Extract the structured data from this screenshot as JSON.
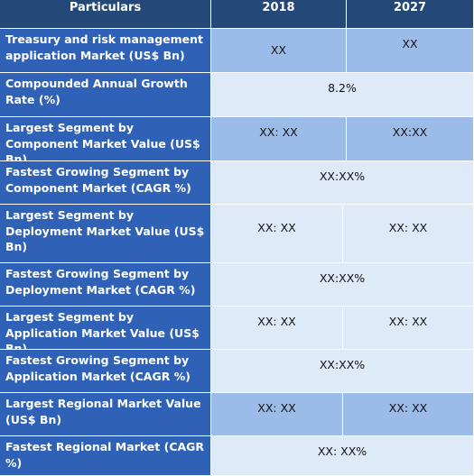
{
  "header": {
    "particulars": "Particulars",
    "col_2018": "2018",
    "col_2027": "2027"
  },
  "rows": [
    {
      "label": "Treasury and risk management application Market (US$ Bn)",
      "v2018": "XX",
      "v2027": "XX"
    },
    {
      "label": "Compounded Annual Growth Rate (%)",
      "merged": "8.2%"
    },
    {
      "label": "Largest Segment by Component Market Value (US$ Bn)",
      "v2018": "XX: XX",
      "v2027": "XX:XX"
    },
    {
      "label": "Fastest Growing Segment by Component Market (CAGR %)",
      "merged": "XX:XX%"
    },
    {
      "label": "Largest Segment by Deployment Market Value (US$ Bn)",
      "v2018": "XX: XX",
      "v2027": "XX: XX"
    },
    {
      "label": "Fastest Growing Segment by Deployment Market (CAGR %)",
      "merged": "XX:XX%"
    },
    {
      "label": "Largest Segment by Application Market Value (US$ Bn)",
      "v2018": "XX: XX",
      "v2027": "XX: XX"
    },
    {
      "label": "Fastest Growing Segment by Application Market (CAGR %)",
      "merged": "XX:XX%"
    },
    {
      "label": "Largest Regional Market Value (US$ Bn)",
      "v2018": "XX: XX",
      "v2027": "XX: XX"
    },
    {
      "label": "Fastest Regional Market (CAGR %)",
      "merged": "XX: XX%"
    }
  ]
}
